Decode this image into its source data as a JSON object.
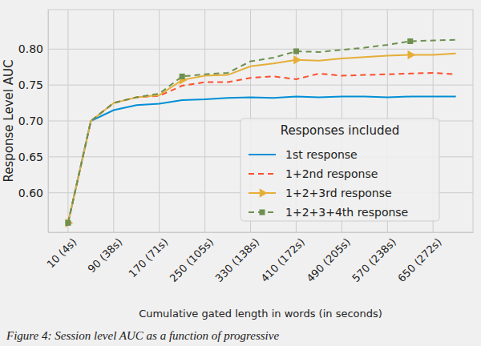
{
  "chart_data": {
    "type": "line",
    "y_label": "Response Level AUC",
    "x_label": "Cumulative gated length in words (in seconds)",
    "caption": "Figure 4: Session level AUC as a function of progressive",
    "legend_title": "Responses included",
    "legend": "lower right",
    "grid": true,
    "x": [
      10,
      50,
      90,
      130,
      170,
      210,
      250,
      290,
      330,
      370,
      410,
      450,
      490,
      530,
      570,
      610,
      650,
      690
    ],
    "xlim": [
      -25,
      720
    ],
    "xticks": [
      {
        "value": 10,
        "label": "10 (4s)"
      },
      {
        "value": 90,
        "label": "90 (38s)"
      },
      {
        "value": 170,
        "label": "170 (71s)"
      },
      {
        "value": 250,
        "label": "250 (105s)"
      },
      {
        "value": 330,
        "label": "330 (138s)"
      },
      {
        "value": 410,
        "label": "410 (172s)"
      },
      {
        "value": 490,
        "label": "490 (205s)"
      },
      {
        "value": 570,
        "label": "570 (238s)"
      },
      {
        "value": 650,
        "label": "650 (272s)"
      }
    ],
    "ylim": [
      0.545,
      0.855
    ],
    "yticks": [
      {
        "value": 0.6,
        "label": "0.60"
      },
      {
        "value": 0.65,
        "label": "0.65"
      },
      {
        "value": 0.7,
        "label": "0.70"
      },
      {
        "value": 0.75,
        "label": "0.75"
      },
      {
        "value": 0.8,
        "label": "0.80"
      }
    ],
    "series": [
      {
        "name": "1st response",
        "color": "#008fd5",
        "line_style": "solid",
        "values": [
          0.558,
          0.7,
          0.715,
          0.722,
          0.724,
          0.729,
          0.73,
          0.732,
          0.733,
          0.732,
          0.734,
          0.733,
          0.734,
          0.734,
          0.733,
          0.734,
          0.734,
          0.734
        ]
      },
      {
        "name": "1+2nd response",
        "color": "#fc4f30",
        "line_style": "dashed",
        "values": [
          0.558,
          0.7,
          0.725,
          0.733,
          0.735,
          0.749,
          0.754,
          0.754,
          0.76,
          0.762,
          0.758,
          0.766,
          0.763,
          0.764,
          0.765,
          0.766,
          0.767,
          0.765
        ]
      },
      {
        "name": "1+2+3rd response",
        "color": "#e5ae38",
        "line_style": "solid",
        "marker": "triangle",
        "values": [
          0.558,
          0.7,
          0.725,
          0.733,
          0.736,
          0.757,
          0.763,
          0.764,
          0.776,
          0.78,
          0.785,
          0.784,
          0.787,
          0.789,
          0.791,
          0.792,
          0.792,
          0.794
        ]
      },
      {
        "name": "1+2+3+4th response",
        "color": "#6d904f",
        "line_style": "dashed",
        "marker": "square",
        "values": [
          0.558,
          0.7,
          0.725,
          0.733,
          0.738,
          0.762,
          0.765,
          0.767,
          0.783,
          0.788,
          0.797,
          0.796,
          0.799,
          0.802,
          0.806,
          0.811,
          0.812,
          0.813
        ]
      }
    ]
  }
}
